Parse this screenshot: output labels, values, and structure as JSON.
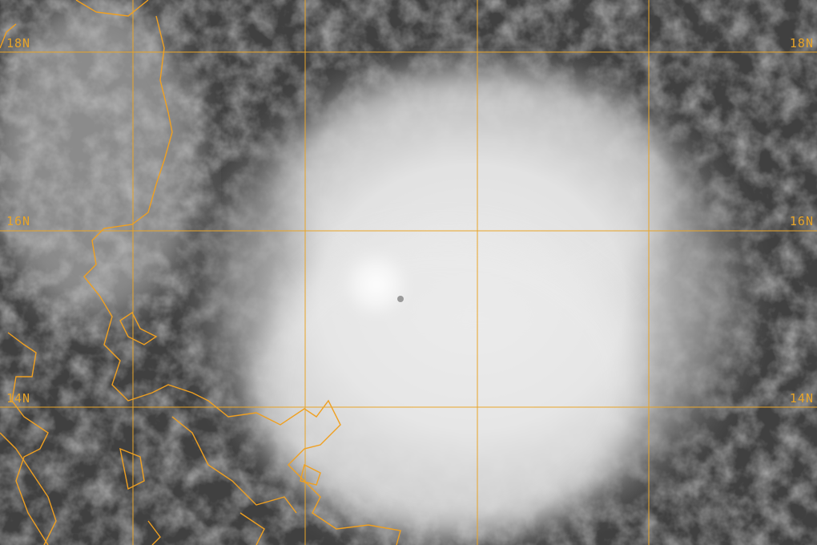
{
  "map": {
    "grid_color": "#e8a428",
    "coastline_color": "#f0a020",
    "latitude_labels": [
      {
        "left": "18N",
        "right": "18N"
      },
      {
        "left": "16N",
        "right": "16N"
      },
      {
        "left": "14N",
        "right": "14N"
      }
    ]
  }
}
